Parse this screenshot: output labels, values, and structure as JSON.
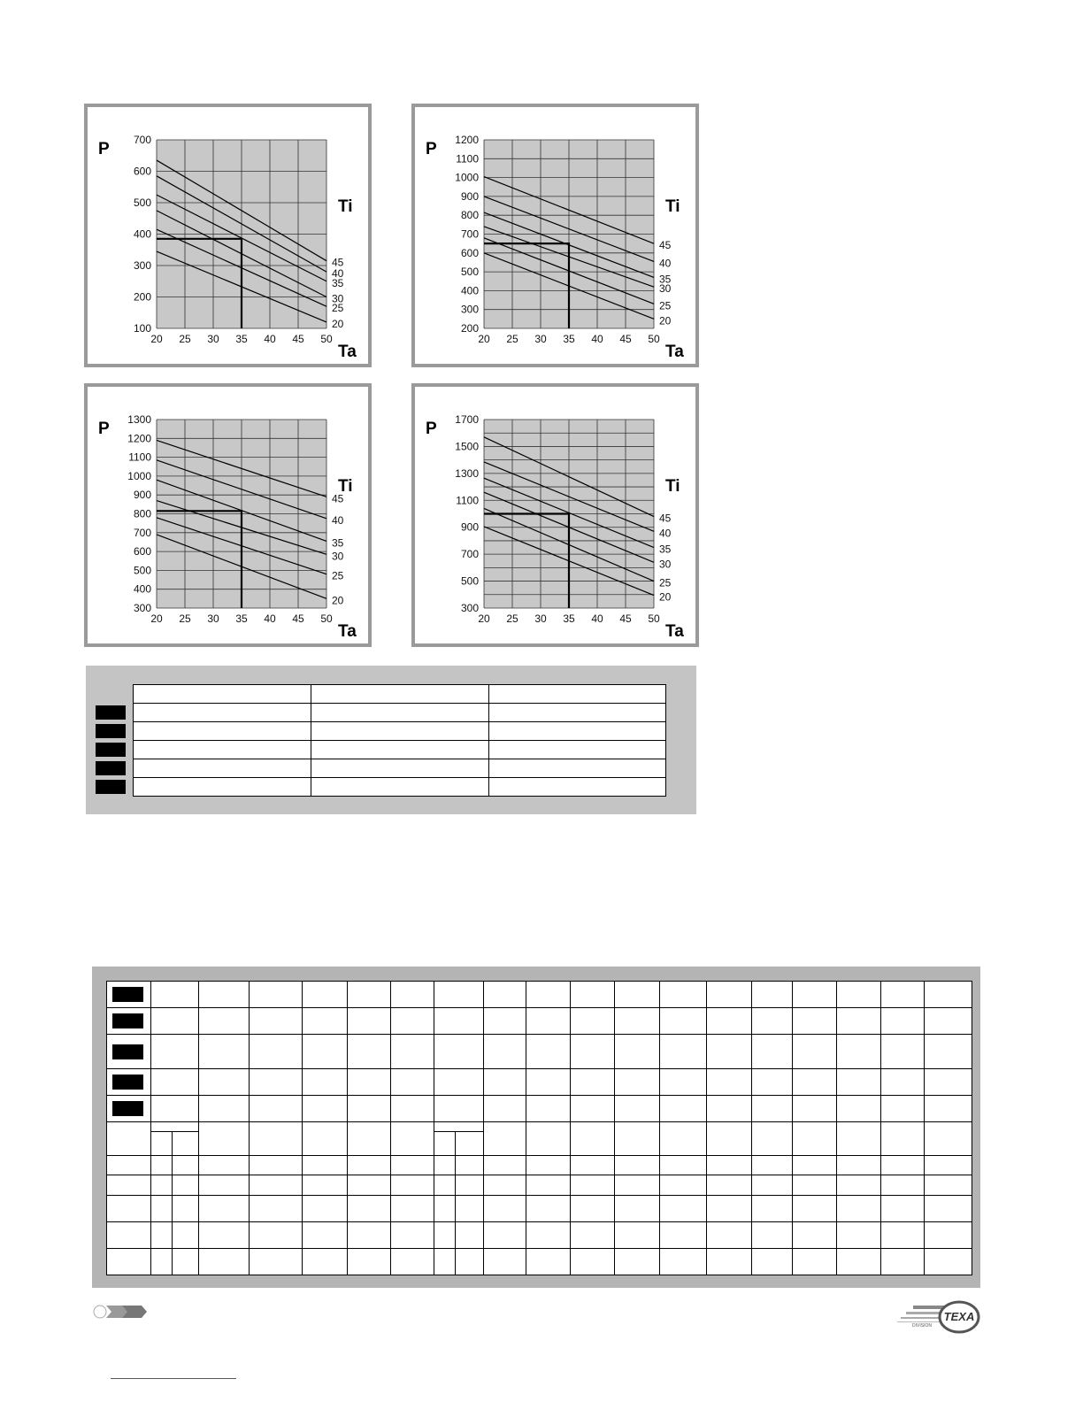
{
  "chart_data": [
    {
      "type": "line",
      "ylabel": "P",
      "xlabel": "Ta",
      "legend_title": "Ti",
      "x": [
        20,
        50
      ],
      "xticks": [
        20,
        25,
        30,
        35,
        40,
        45,
        50
      ],
      "xlim": [
        20,
        50
      ],
      "ylim": [
        100,
        700
      ],
      "yticks": [
        100,
        200,
        300,
        400,
        500,
        600,
        700
      ],
      "ygrid_step": 100,
      "grid": true,
      "series": [
        {
          "name": "45",
          "values": [
            635,
            315
          ]
        },
        {
          "name": "40",
          "values": [
            585,
            280
          ]
        },
        {
          "name": "35",
          "values": [
            525,
            250
          ]
        },
        {
          "name": "30",
          "values": [
            475,
            200
          ]
        },
        {
          "name": "25",
          "values": [
            415,
            170
          ]
        },
        {
          "name": "20",
          "values": [
            345,
            120
          ]
        }
      ],
      "marker": {
        "x": 35,
        "y": 385
      }
    },
    {
      "type": "line",
      "ylabel": "P",
      "xlabel": "Ta",
      "legend_title": "Ti",
      "x": [
        20,
        50
      ],
      "xticks": [
        20,
        25,
        30,
        35,
        40,
        45,
        50
      ],
      "xlim": [
        20,
        50
      ],
      "ylim": [
        200,
        1200
      ],
      "yticks": [
        200,
        300,
        400,
        500,
        600,
        700,
        800,
        900,
        1000,
        1100,
        1200
      ],
      "ygrid_step": 100,
      "grid": true,
      "series": [
        {
          "name": "45",
          "values": [
            1005,
            650
          ]
        },
        {
          "name": "40",
          "values": [
            900,
            555
          ]
        },
        {
          "name": "35",
          "values": [
            815,
            470
          ]
        },
        {
          "name": "30",
          "values": [
            740,
            420
          ]
        },
        {
          "name": "25",
          "values": [
            680,
            330
          ]
        },
        {
          "name": "20",
          "values": [
            600,
            250
          ]
        }
      ],
      "marker": {
        "x": 35,
        "y": 650
      }
    },
    {
      "type": "line",
      "ylabel": "P",
      "xlabel": "Ta",
      "legend_title": "Ti",
      "x": [
        20,
        50
      ],
      "xticks": [
        20,
        25,
        30,
        35,
        40,
        45,
        50
      ],
      "xlim": [
        20,
        50
      ],
      "ylim": [
        300,
        1300
      ],
      "yticks": [
        300,
        400,
        500,
        600,
        700,
        800,
        900,
        1000,
        1100,
        1200,
        1300
      ],
      "ygrid_step": 100,
      "grid": true,
      "series": [
        {
          "name": "45",
          "values": [
            1190,
            890
          ]
        },
        {
          "name": "40",
          "values": [
            1085,
            775
          ]
        },
        {
          "name": "35",
          "values": [
            980,
            655
          ]
        },
        {
          "name": "30",
          "values": [
            870,
            585
          ]
        },
        {
          "name": "25",
          "values": [
            780,
            480
          ]
        },
        {
          "name": "20",
          "values": [
            690,
            350
          ]
        }
      ],
      "marker": {
        "x": 35,
        "y": 815
      }
    },
    {
      "type": "line",
      "ylabel": "P",
      "xlabel": "Ta",
      "legend_title": "Ti",
      "x": [
        20,
        50
      ],
      "xticks": [
        20,
        25,
        30,
        35,
        40,
        45,
        50
      ],
      "xlim": [
        20,
        50
      ],
      "ylim": [
        300,
        1700
      ],
      "yticks": [
        300,
        500,
        700,
        900,
        1100,
        1300,
        1500,
        1700
      ],
      "ygrid_step": 100,
      "grid": true,
      "series": [
        {
          "name": "45",
          "values": [
            1570,
            980
          ]
        },
        {
          "name": "40",
          "values": [
            1385,
            870
          ]
        },
        {
          "name": "35",
          "values": [
            1265,
            750
          ]
        },
        {
          "name": "30",
          "values": [
            1160,
            640
          ]
        },
        {
          "name": "25",
          "values": [
            1040,
            500
          ]
        },
        {
          "name": "20",
          "values": [
            905,
            395
          ]
        }
      ],
      "marker": {
        "x": 35,
        "y": 1000
      }
    }
  ],
  "colors": {
    "plot_bg": "#c8c8c8",
    "frame": "#9a9a9a",
    "table_bg": "#c4c4c4"
  },
  "footer": {
    "left_logo_icon": "chevron-logo-icon",
    "right_logo": "TEXA",
    "right_logo_sub": "DIVISION"
  }
}
